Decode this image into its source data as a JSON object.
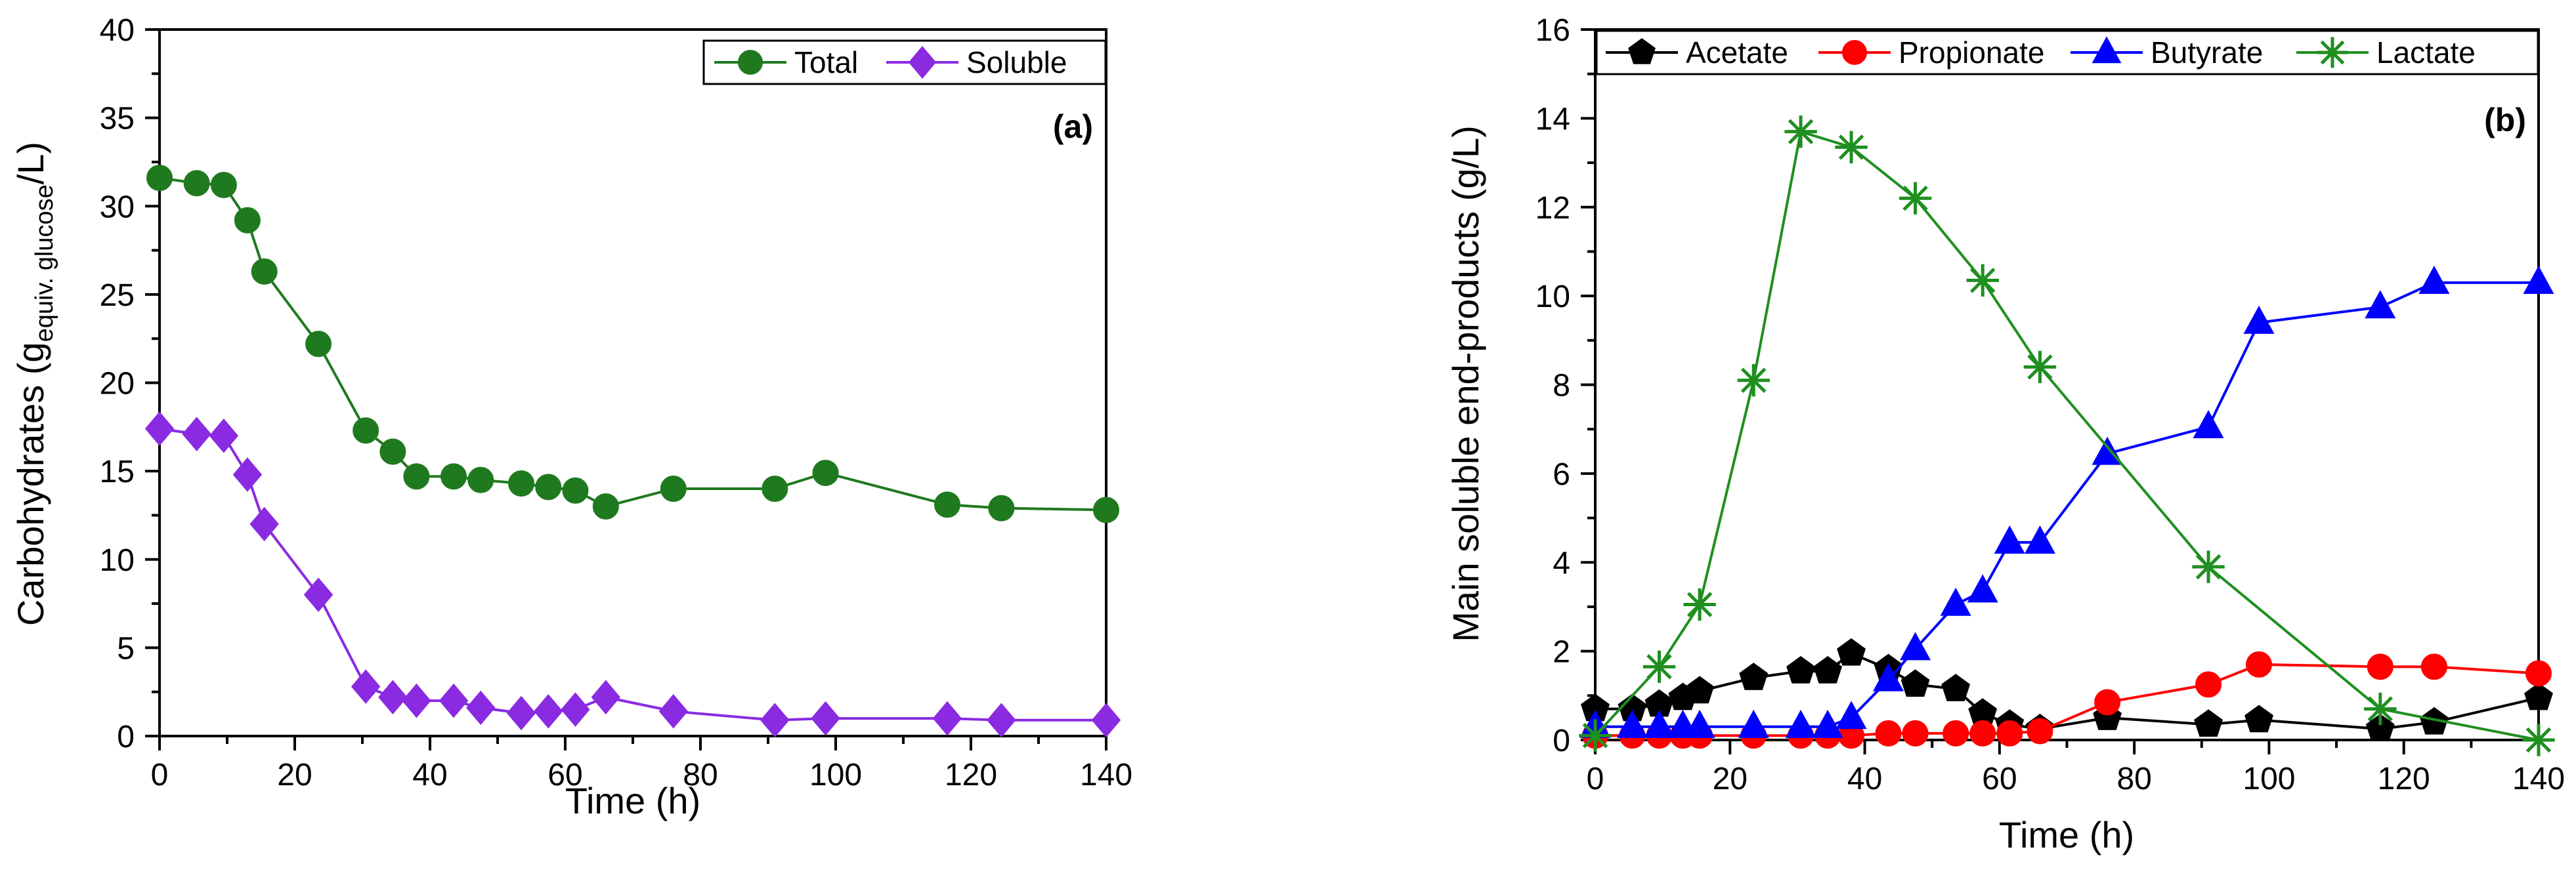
{
  "chart_data": [
    {
      "type": "line",
      "panel_label": "(a)",
      "xlabel": "Time (h)",
      "ylabel": {
        "main": "Carbohydrates (g",
        "sub": "equiv. glucose",
        "tail": "/L)"
      },
      "xlim": [
        0,
        140
      ],
      "ylim": [
        0,
        40
      ],
      "xticks": [
        0,
        20,
        40,
        60,
        80,
        100,
        120,
        140
      ],
      "yticks": [
        0,
        5,
        10,
        15,
        20,
        25,
        30,
        35,
        40
      ],
      "legend_position": "top-right",
      "series": [
        {
          "name": "Total",
          "color": "#1f7a1f",
          "marker": "circle",
          "x": [
            0,
            5.5,
            9.5,
            13,
            15.5,
            23.5,
            30.5,
            34.5,
            38,
            43.5,
            47.5,
            53.5,
            57.5,
            61.5,
            66,
            76,
            91,
            98.5,
            116.5,
            124.5,
            140
          ],
          "y": [
            31.6,
            31.3,
            31.2,
            29.2,
            26.3,
            22.2,
            17.3,
            16.1,
            14.7,
            14.7,
            14.5,
            14.3,
            14.1,
            13.9,
            13.0,
            14.0,
            14.0,
            14.9,
            13.1,
            12.9,
            12.8
          ]
        },
        {
          "name": "Soluble",
          "color": "#8a2be2",
          "marker": "diamond",
          "x": [
            0,
            5.5,
            9.5,
            13,
            15.5,
            23.5,
            30.5,
            34.5,
            38,
            43.5,
            47.5,
            53.5,
            57.5,
            61.5,
            66,
            76,
            91,
            98.5,
            116.5,
            124.5,
            140
          ],
          "y": [
            17.4,
            17.1,
            17.0,
            14.8,
            12.0,
            8.0,
            2.8,
            2.2,
            2.0,
            2.0,
            1.6,
            1.3,
            1.4,
            1.5,
            2.2,
            1.4,
            0.9,
            1.0,
            1.0,
            0.9,
            0.9
          ]
        }
      ]
    },
    {
      "type": "line",
      "panel_label": "(b)",
      "xlabel": "Time (h)",
      "ylabel": {
        "main": "Main soluble end-products (g/L)",
        "sub": "",
        "tail": ""
      },
      "xlim": [
        0,
        140
      ],
      "ylim": [
        0,
        16
      ],
      "xticks": [
        0,
        20,
        40,
        60,
        80,
        100,
        120,
        140
      ],
      "yticks": [
        0,
        2,
        4,
        6,
        8,
        10,
        12,
        14,
        16
      ],
      "legend_position": "top",
      "series": [
        {
          "name": "Acetate",
          "color": "#000000",
          "marker": "pentagon",
          "x": [
            0,
            5.5,
            9.5,
            13,
            15.5,
            23.5,
            30.5,
            34.5,
            38,
            43.5,
            47.5,
            53.5,
            57.5,
            61.5,
            66,
            76,
            91,
            98.5,
            116.5,
            124.5,
            140
          ],
          "y": [
            0.7,
            0.7,
            0.8,
            0.95,
            1.1,
            1.4,
            1.55,
            1.55,
            1.95,
            1.6,
            1.25,
            1.15,
            0.6,
            0.35,
            0.25,
            0.5,
            0.35,
            0.45,
            0.25,
            0.4,
            0.95
          ]
        },
        {
          "name": "Propionate",
          "color": "#ff0000",
          "marker": "circle",
          "x": [
            0,
            5.5,
            9.5,
            13,
            15.5,
            23.5,
            30.5,
            34.5,
            38,
            43.5,
            47.5,
            53.5,
            57.5,
            61.5,
            66,
            76,
            91,
            98.5,
            116.5,
            124.5,
            140
          ],
          "y": [
            0.1,
            0.1,
            0.1,
            0.1,
            0.1,
            0.1,
            0.1,
            0.1,
            0.1,
            0.15,
            0.15,
            0.15,
            0.15,
            0.15,
            0.2,
            0.85,
            1.25,
            1.7,
            1.65,
            1.65,
            1.5
          ]
        },
        {
          "name": "Butyrate",
          "color": "#0000ff",
          "marker": "triangle",
          "x": [
            0,
            5.5,
            9.5,
            13,
            15.5,
            23.5,
            30.5,
            34.5,
            38,
            43.5,
            47.5,
            53.5,
            57.5,
            61.5,
            66,
            76,
            91,
            98.5,
            116.5,
            124.5,
            140
          ],
          "y": [
            0.3,
            0.3,
            0.3,
            0.3,
            0.3,
            0.3,
            0.3,
            0.3,
            0.5,
            1.35,
            2.05,
            3.05,
            3.35,
            4.45,
            4.45,
            6.45,
            7.05,
            9.4,
            9.75,
            10.3,
            10.3
          ]
        },
        {
          "name": "Lactate",
          "color": "#1f8f1f",
          "marker": "asterisk",
          "x": [
            0,
            9.5,
            15.5,
            23.5,
            30.5,
            38,
            47.5,
            57.5,
            66,
            91,
            116.5,
            140
          ],
          "y": [
            0.1,
            1.65,
            3.05,
            8.1,
            13.7,
            13.35,
            12.2,
            10.35,
            8.4,
            3.9,
            0.7,
            0.0
          ]
        }
      ]
    }
  ]
}
